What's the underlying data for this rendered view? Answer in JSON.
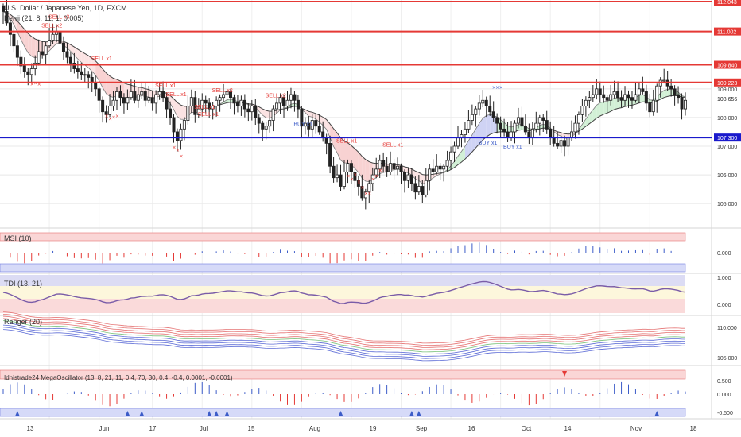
{
  "header": {
    "symbol_title": "U.S. Dollar / Japanese Yen, 1D, FXCM",
    "indicator_title": "Kenji (21, 8, 11, 1, 0.005)"
  },
  "main_axis": {
    "ticks": [
      "109.000",
      "108.000",
      "107.000",
      "106.000",
      "105.000"
    ],
    "range": [
      104.2,
      112.1
    ],
    "current_price": "108.656"
  },
  "price_levels": [
    {
      "value": 112.043,
      "label": "112.043",
      "color": "#e53935"
    },
    {
      "value": 111.002,
      "label": "111.002",
      "color": "#e53935"
    },
    {
      "value": 109.84,
      "label": "109.840",
      "color": "#e53935"
    },
    {
      "value": 109.223,
      "label": "109.223",
      "color": "#e53935"
    },
    {
      "value": 107.3,
      "label": "107.300",
      "color": "#1a1acc"
    }
  ],
  "signals": [
    {
      "text": "SELL x2",
      "bar": 13,
      "price": 111.15,
      "color": "#e53935"
    },
    {
      "text": "SELL x3",
      "bar": 15,
      "price": 111.45,
      "color": "#e53935"
    },
    {
      "text": "SELL x1",
      "bar": 27,
      "price": 110.0,
      "color": "#e53935"
    },
    {
      "text": "SELL x1",
      "bar": 45,
      "price": 109.05,
      "color": "#e53935"
    },
    {
      "text": "SELL x1",
      "bar": 48,
      "price": 108.75,
      "color": "#e53935"
    },
    {
      "text": "SELL x1",
      "bar": 56,
      "price": 108.3,
      "color": "#e53935"
    },
    {
      "text": "SELL x1",
      "bar": 57,
      "price": 108.05,
      "color": "#e53935"
    },
    {
      "text": "SELL x2",
      "bar": 61,
      "price": 108.88,
      "color": "#e53935"
    },
    {
      "text": "SELL x2",
      "bar": 76,
      "price": 108.7,
      "color": "#e53935"
    },
    {
      "text": "SELL x1",
      "bar": 96,
      "price": 107.13,
      "color": "#e53935"
    },
    {
      "text": "SELL x1",
      "bar": 109,
      "price": 106.98,
      "color": "#e53935"
    },
    {
      "text": "BUY x1",
      "bar": 84,
      "price": 107.7,
      "color": "#3c5cc8"
    },
    {
      "text": "BUY x1",
      "bar": 136,
      "price": 107.05,
      "color": "#3c5cc8"
    },
    {
      "text": "BUY x1",
      "bar": 143,
      "price": 106.92,
      "color": "#3c5cc8"
    }
  ],
  "oscillators": [
    {
      "title": "MSI (10)",
      "ticks": [
        "0.000"
      ]
    },
    {
      "title": "TDI (13, 21)",
      "ticks": [
        "1.000",
        "0.000"
      ]
    },
    {
      "title": "Ranger (20)",
      "ticks": [
        "110.000",
        "105.000"
      ]
    },
    {
      "title": "Idnistrade24 MegaOscillator (13, 8, 21, 11, 0.4, 70, 30, 0.4, -0.4, 0.0001, -0.0001)",
      "ticks": [
        "0.500",
        "0.000",
        "-0.500"
      ]
    }
  ],
  "time_axis": {
    "labels": [
      "13",
      "Jun",
      "17",
      "Jul",
      "15",
      "Aug",
      "19",
      "Sep",
      "16",
      "Oct",
      "14",
      "Nov",
      "18"
    ]
  },
  "colors": {
    "bull": "#2a2a2a",
    "bear": "#2a2a2a",
    "sell": "#e53935",
    "buy": "#3c5cc8",
    "resistance": "#e53935",
    "support": "#1a1acc",
    "grid": "#e8e8e8"
  },
  "chart_data": {
    "type": "candlestick",
    "title": "U.S. Dollar / Japanese Yen, 1D, FXCM",
    "period": "13 May – 18 Nov",
    "close": [
      111.7,
      111.3,
      110.9,
      110.5,
      110.1,
      109.8,
      109.6,
      109.5,
      109.7,
      109.9,
      110.3,
      110.2,
      110.5,
      110.7,
      110.9,
      111.0,
      110.6,
      110.3,
      110.1,
      109.9,
      109.7,
      109.6,
      109.5,
      109.5,
      109.4,
      109.2,
      109.0,
      108.6,
      108.2,
      108.1,
      108.4,
      108.6,
      108.9,
      108.7,
      108.5,
      108.7,
      108.9,
      108.6,
      108.8,
      108.9,
      108.6,
      108.7,
      108.5,
      108.8,
      108.9,
      108.7,
      108.3,
      108.0,
      107.5,
      107.2,
      107.6,
      107.9,
      108.4,
      108.7,
      108.1,
      108.3,
      108.6,
      108.5,
      108.3,
      108.4,
      108.6,
      108.7,
      108.8,
      108.9,
      108.7,
      108.5,
      108.4,
      108.6,
      108.3,
      108.2,
      108.4,
      108.0,
      107.8,
      107.6,
      107.7,
      107.9,
      108.3,
      108.5,
      108.7,
      108.4,
      108.6,
      108.8,
      108.6,
      108.3,
      107.7,
      107.8,
      107.6,
      107.9,
      107.7,
      107.5,
      107.3,
      107.1,
      106.3,
      105.9,
      106.0,
      105.6,
      106.1,
      106.4,
      106.1,
      105.8,
      105.6,
      105.2,
      105.4,
      105.7,
      106.0,
      106.2,
      106.5,
      106.3,
      106.1,
      106.4,
      106.2,
      106.3,
      106.1,
      105.8,
      106.0,
      105.7,
      105.4,
      105.6,
      105.3,
      105.8,
      106.2,
      106.1,
      106.3,
      106.2,
      106.3,
      106.5,
      106.8,
      107.0,
      107.3,
      107.4,
      107.6,
      107.9,
      108.1,
      108.3,
      108.5,
      108.6,
      108.4,
      108.2,
      108.0,
      107.8,
      107.6,
      107.5,
      107.3,
      107.5,
      107.8,
      108.0,
      107.7,
      107.5,
      107.3,
      107.6,
      107.8,
      108.0,
      107.9,
      107.6,
      107.3,
      107.1,
      107.0,
      107.2,
      107.0,
      107.3,
      107.5,
      107.8,
      108.1,
      108.4,
      108.6,
      108.7,
      108.8,
      109.0,
      108.8,
      108.7,
      108.6,
      108.8,
      108.9,
      108.7,
      108.6,
      108.8,
      108.7,
      108.6,
      108.8,
      109.0,
      108.9,
      108.5,
      108.2,
      108.6,
      109.1,
      109.3,
      109.3,
      109.1,
      109.0,
      108.8,
      108.7,
      108.3,
      108.6
    ],
    "ylim": [
      104.2,
      112.1
    ],
    "levels": [
      112.043,
      111.002,
      109.84,
      109.223,
      107.3
    ]
  }
}
